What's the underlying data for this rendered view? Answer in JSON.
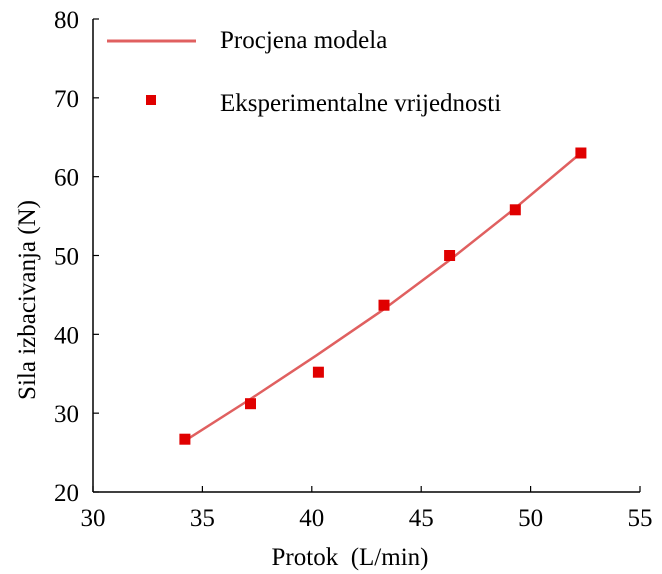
{
  "chart_data": {
    "type": "scatter",
    "xlabel": "Protok  (L/min)",
    "ylabel": "Sila izbacivanja (N)",
    "xlim": [
      30,
      55
    ],
    "ylim": [
      20,
      80
    ],
    "x_ticks": [
      30,
      35,
      40,
      45,
      50,
      55
    ],
    "y_ticks": [
      20,
      30,
      40,
      50,
      60,
      70,
      80
    ],
    "grid": false,
    "legend_position": "top-right",
    "series": [
      {
        "name": "Procjena modela",
        "kind": "line",
        "color": "#e06060",
        "x": [
          34.2,
          37.2,
          40.2,
          43.2,
          46.2,
          49.2,
          52.3
        ],
        "y": [
          26.5,
          31.8,
          37.3,
          43.0,
          49.2,
          55.8,
          63.0
        ]
      },
      {
        "name": "Eksperimentalne vrijednosti",
        "kind": "markers",
        "color": "#e00000",
        "x": [
          34.2,
          37.2,
          40.3,
          43.3,
          46.3,
          49.3,
          52.3
        ],
        "y": [
          26.7,
          31.2,
          35.2,
          43.7,
          50.0,
          55.8,
          63.0
        ]
      }
    ]
  }
}
